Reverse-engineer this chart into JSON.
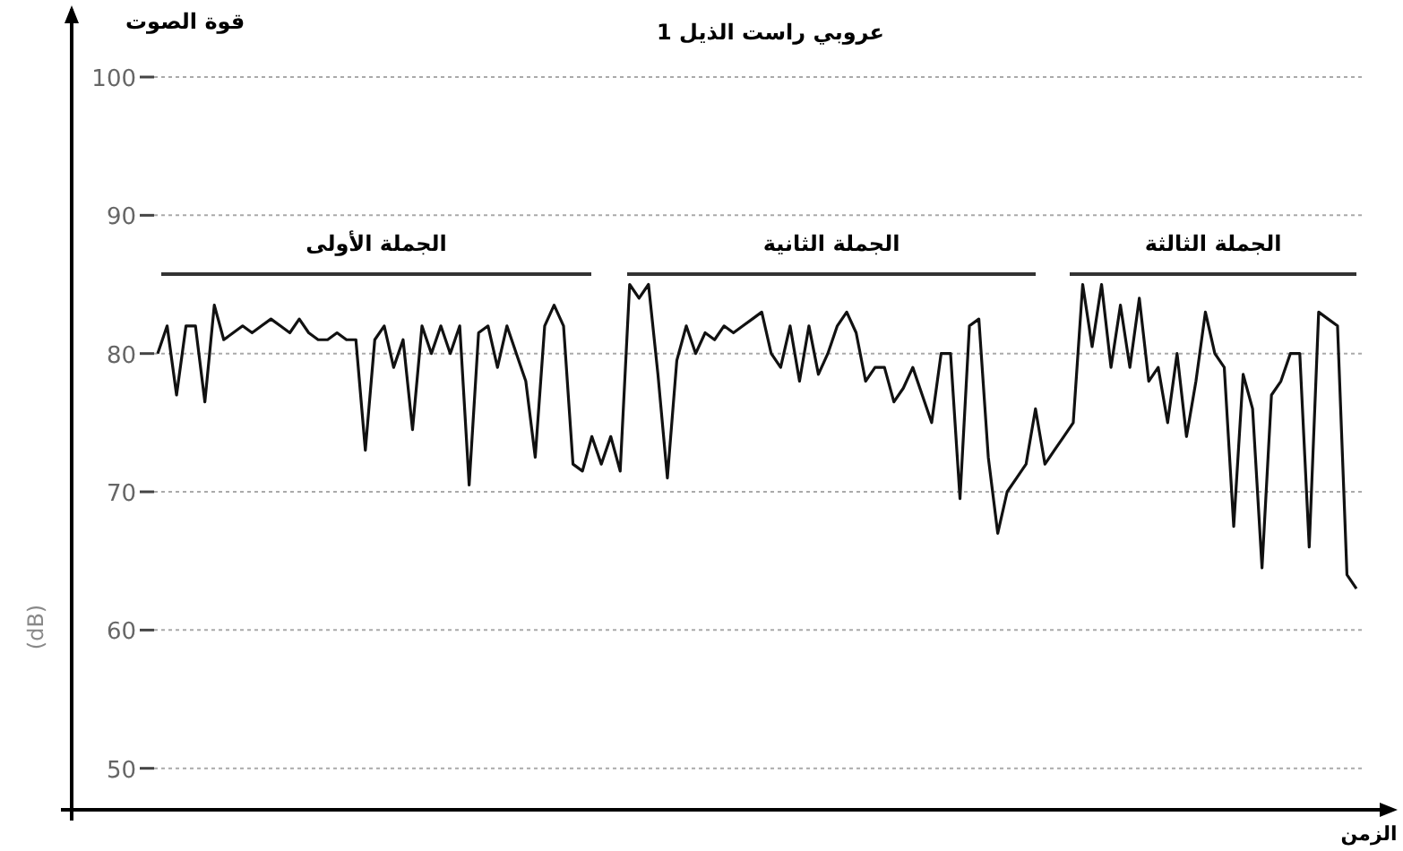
{
  "chart_data": {
    "type": "line",
    "title": "عروبي راست الذيل 1",
    "xlabel": "الزمن",
    "ylabel": "قوة الصوت",
    "annotations": [
      "الجملة الأولى",
      "الجملة الثانية",
      "الجملة الثالثة",
      "(dB)"
    ],
    "categories": [
      null,
      null,
      null,
      null,
      null,
      null,
      null,
      null,
      null,
      null,
      null,
      null,
      null,
      null,
      null,
      null,
      null,
      null,
      null,
      null,
      null,
      null,
      null,
      null,
      null,
      null,
      null,
      null,
      null,
      null,
      null,
      null,
      null,
      null,
      null,
      null,
      null,
      null,
      null,
      null,
      null,
      null,
      null,
      null,
      null,
      null,
      null,
      null,
      null,
      null,
      null,
      null,
      null,
      null,
      null,
      null,
      null,
      null,
      null,
      null,
      null,
      null,
      null,
      null,
      null,
      null,
      null,
      null,
      null,
      null,
      null,
      null,
      null,
      null,
      null,
      null,
      null,
      null,
      null,
      null,
      null,
      null,
      null,
      null,
      null,
      null,
      null,
      null,
      null,
      null,
      null,
      null,
      null,
      null,
      null,
      null,
      null,
      null,
      null,
      null,
      null,
      null,
      null,
      null,
      null,
      null,
      null,
      null,
      null,
      null,
      null,
      null,
      null,
      null,
      null,
      null,
      null,
      null,
      null,
      null,
      null,
      null,
      null,
      null,
      null,
      null,
      null,
      null
    ],
    "values": [
      80,
      82,
      77,
      82,
      82,
      76.5,
      83.5,
      81,
      81.5,
      82,
      81.5,
      82,
      82.5,
      82,
      81.5,
      82.5,
      81.5,
      81,
      81,
      81.5,
      81,
      81,
      73,
      81,
      82,
      79,
      81,
      74.5,
      82,
      80,
      82,
      80,
      82,
      70.5,
      81.5,
      82,
      79,
      82,
      80,
      78,
      72.5,
      82,
      83.5,
      82,
      72,
      71.5,
      74,
      72,
      74,
      71.5,
      85,
      84,
      85,
      78.5,
      71,
      79.5,
      82,
      80,
      81.5,
      81,
      82,
      81.5,
      82,
      82.5,
      83,
      80,
      79,
      82,
      78,
      82,
      78.5,
      80,
      82,
      83,
      81.5,
      78,
      79,
      79,
      76.5,
      77.5,
      79,
      77,
      75,
      80,
      80,
      69.5,
      82,
      82.5,
      72.5,
      67,
      70,
      71,
      72,
      76,
      72,
      73,
      74,
      75,
      85,
      80.5,
      85,
      79,
      83.5,
      79,
      84,
      78,
      79,
      75,
      80,
      74,
      78,
      83,
      80,
      79,
      67.5,
      78.5,
      76,
      64.5,
      77,
      78,
      80,
      80,
      66,
      83,
      82.5,
      82,
      64,
      63
    ],
    "color": "#111111",
    "ylim": [
      47,
      100
    ],
    "yticks": [
      50,
      60,
      70,
      80,
      90,
      100
    ],
    "grid": "y"
  }
}
